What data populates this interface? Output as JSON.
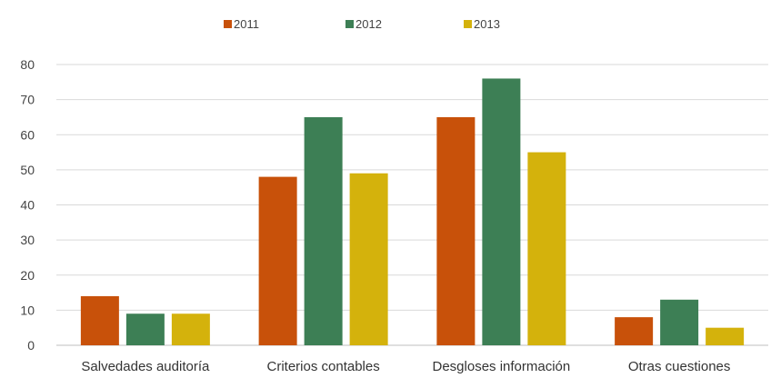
{
  "chart_data": {
    "type": "bar",
    "categories": [
      "Salvedades auditoría",
      "Criterios contables",
      "Desgloses información",
      "Otras cuestiones"
    ],
    "series": [
      {
        "name": "2011",
        "color": "#C8510A",
        "values": [
          14,
          48,
          65,
          8
        ]
      },
      {
        "name": "2012",
        "color": "#3D7F55",
        "values": [
          9,
          65,
          76,
          13
        ]
      },
      {
        "name": "2013",
        "color": "#D4B20C",
        "values": [
          9,
          49,
          55,
          5
        ]
      }
    ],
    "ylim": [
      0,
      80
    ],
    "yticks": [
      0,
      10,
      20,
      30,
      40,
      50,
      60,
      70,
      80
    ],
    "grid": true,
    "legend_position": "top-center"
  }
}
